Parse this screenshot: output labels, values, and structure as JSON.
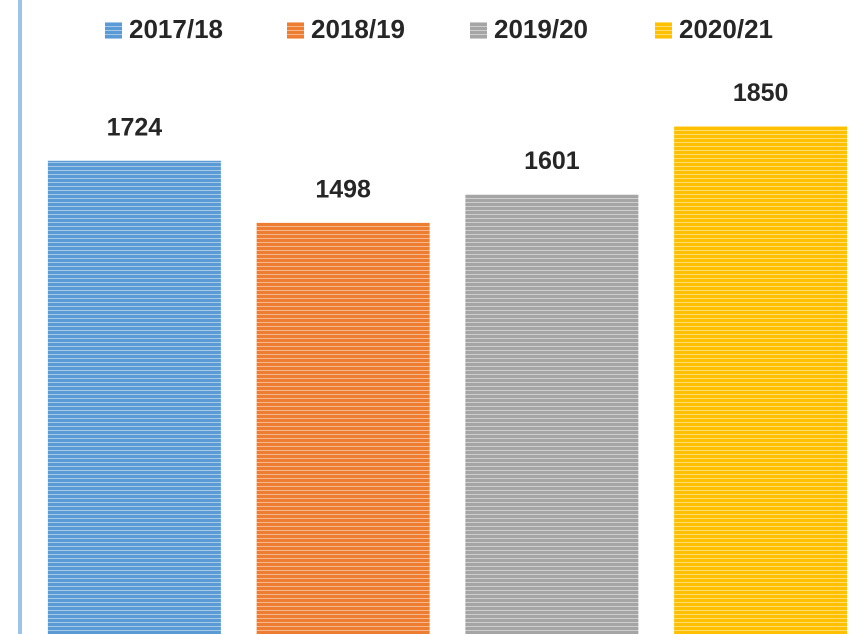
{
  "chart_data": {
    "type": "bar",
    "series": [
      {
        "name": "2017/18",
        "color": "#5b9bd5",
        "values": [
          1724
        ]
      },
      {
        "name": "2018/19",
        "color": "#ed7d31",
        "values": [
          1498
        ]
      },
      {
        "name": "2019/20",
        "color": "#a5a5a5",
        "values": [
          1601
        ]
      },
      {
        "name": "2020/21",
        "color": "#ffc000",
        "values": [
          1850
        ]
      }
    ],
    "ylim": [
      0,
      2000
    ],
    "legend": "top"
  }
}
